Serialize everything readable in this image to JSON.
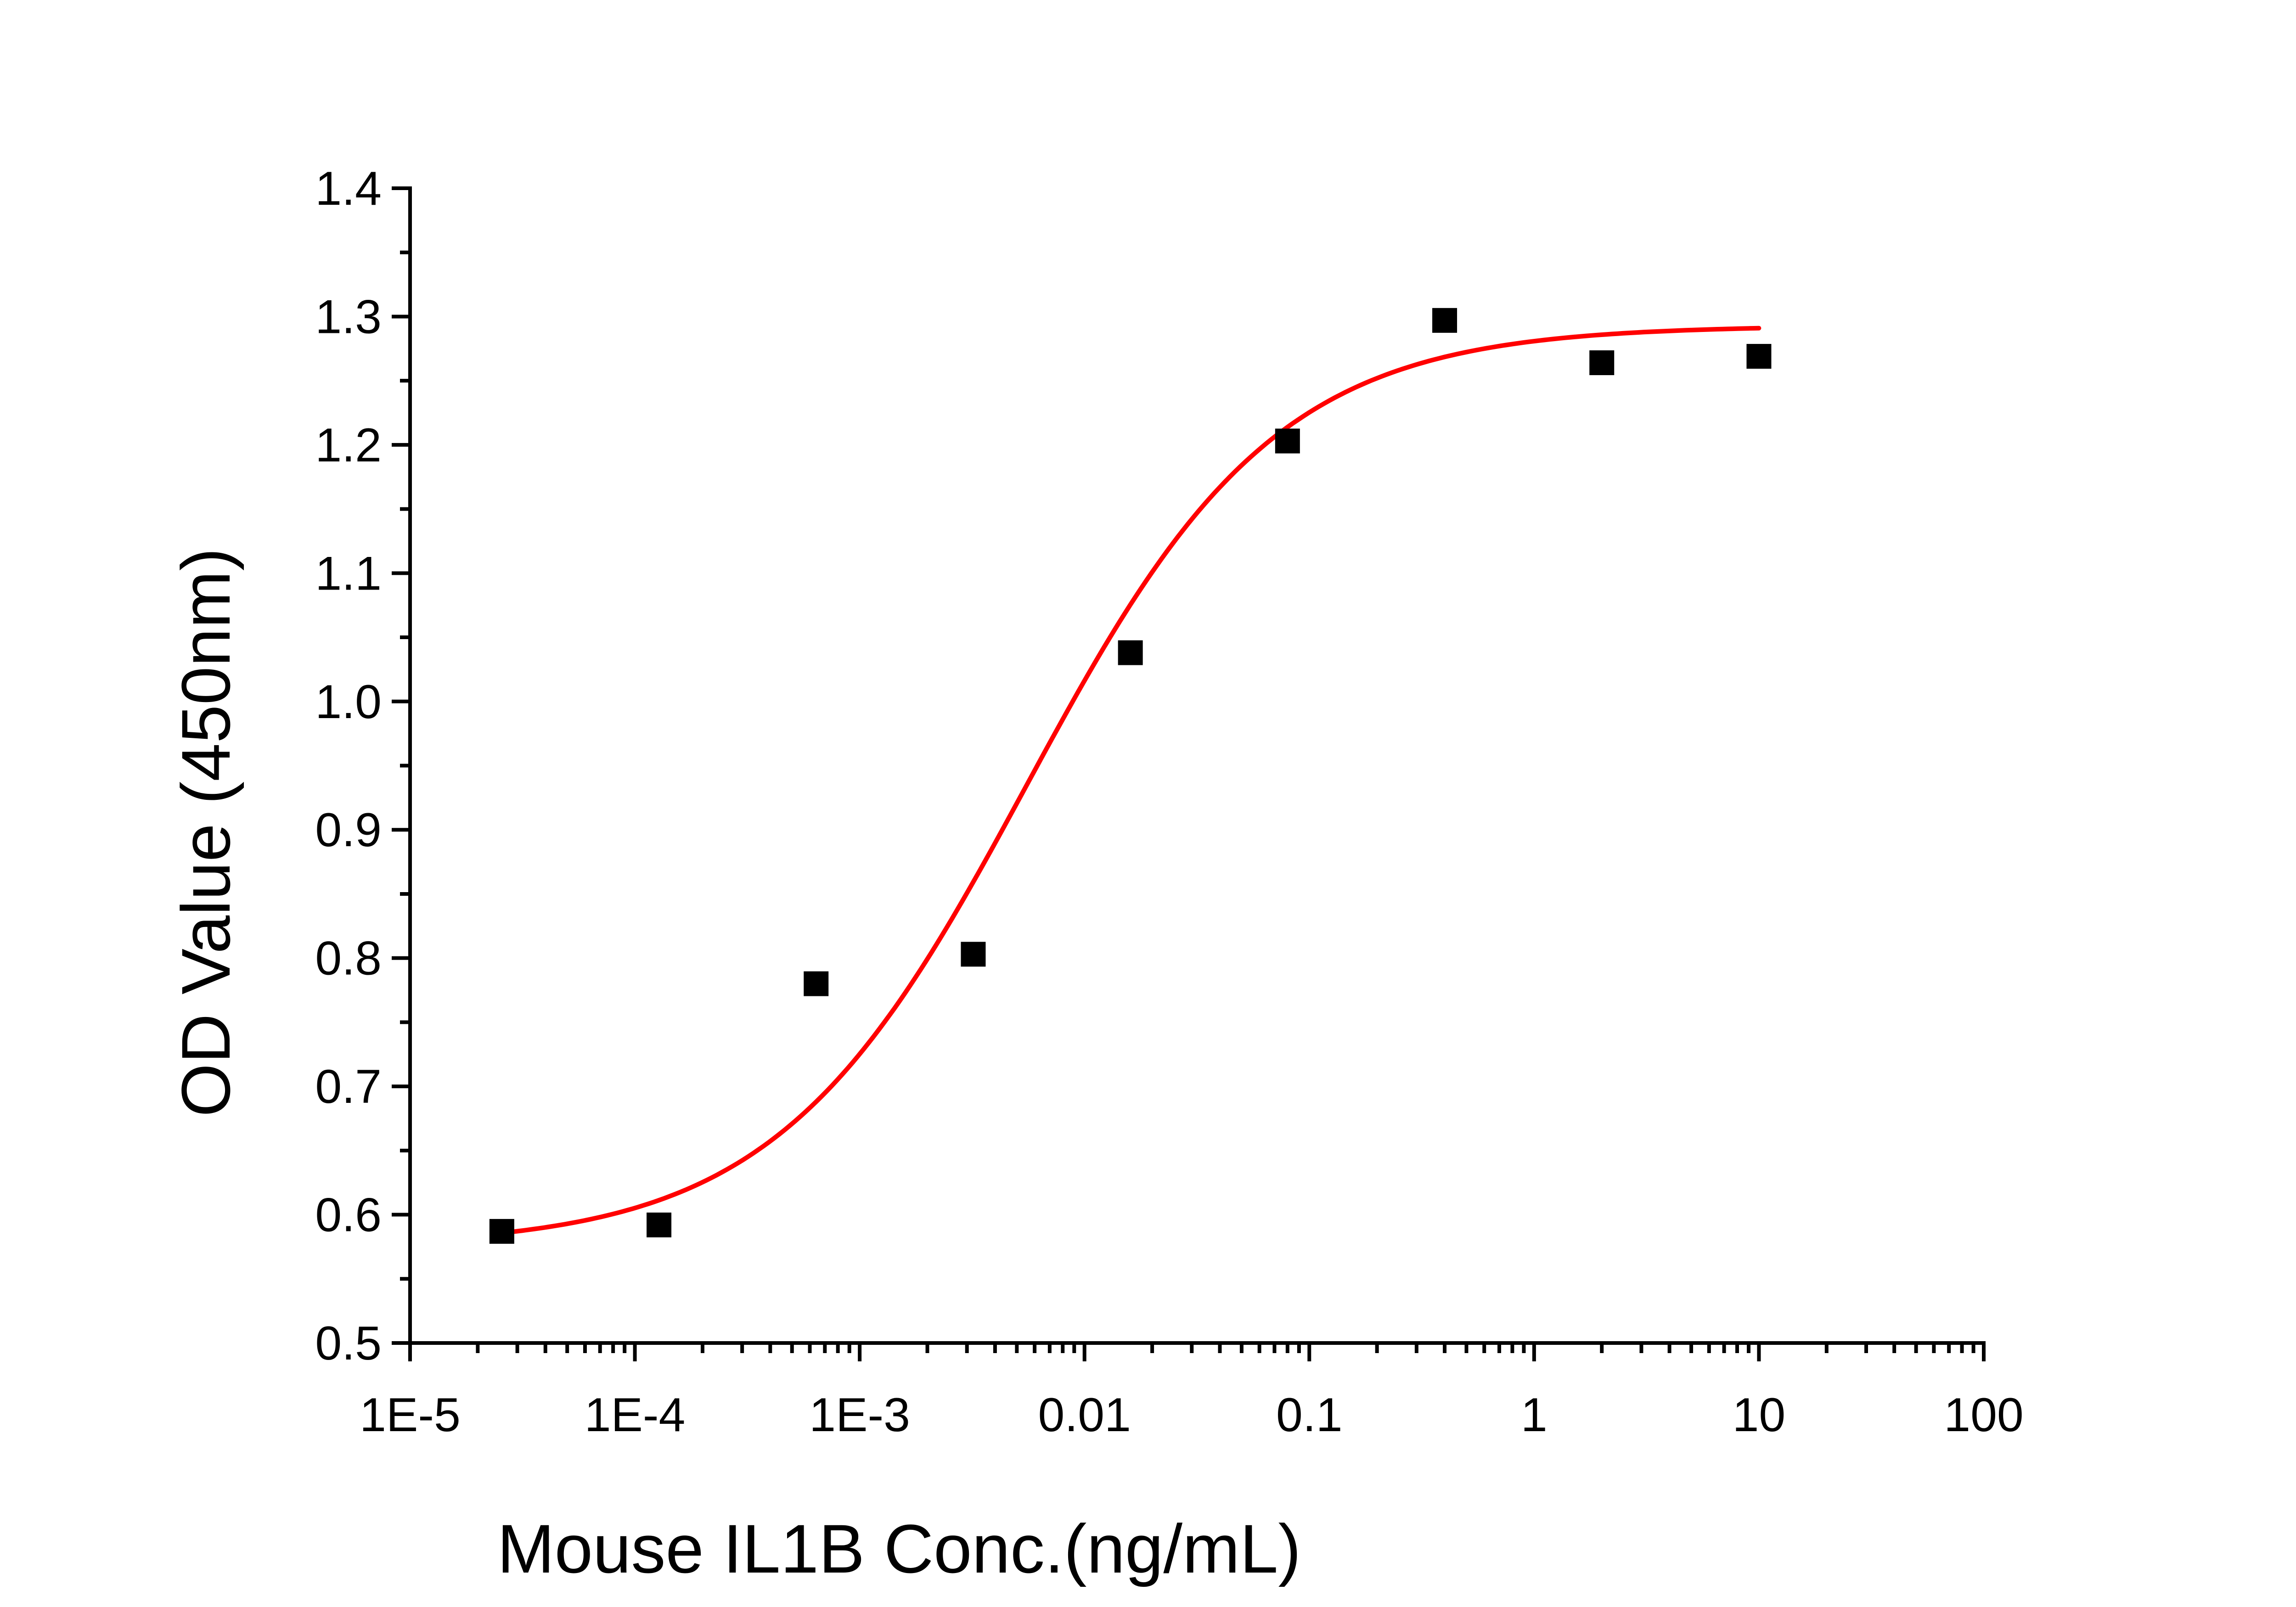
{
  "chart_data": {
    "type": "scatter",
    "title": "",
    "xlabel": "Mouse IL1B Conc.(ng/mL)",
    "ylabel": "OD Value (450nm)",
    "x_scale": "log10",
    "xlim": [
      1e-05,
      100
    ],
    "ylim": [
      0.5,
      1.4
    ],
    "grid": false,
    "legend": "none",
    "x_tick_values": [
      1e-05,
      0.0001,
      0.001,
      0.01,
      0.1,
      1,
      10,
      100
    ],
    "x_tick_labels": [
      "1E-5",
      "1E-4",
      "1E-3",
      "0.01",
      "0.1",
      "1",
      "10",
      "100"
    ],
    "y_tick_values": [
      0.5,
      0.6,
      0.7,
      0.8,
      0.9,
      1.0,
      1.1,
      1.2,
      1.3,
      1.4
    ],
    "y_tick_labels": [
      "0.5",
      "0.6",
      "0.7",
      "0.8",
      "0.9",
      "1.0",
      "1.1",
      "1.2",
      "1.3",
      "1.4"
    ],
    "series": [
      {
        "marker": "square",
        "color": "#000000",
        "x": [
          2.56e-05,
          0.000128,
          0.00064,
          0.0032,
          0.016,
          0.08,
          0.4,
          2,
          10
        ],
        "y": [
          0.587,
          0.592,
          0.78,
          0.803,
          1.038,
          1.203,
          1.297,
          1.264,
          1.269
        ]
      }
    ],
    "fit_curve": {
      "model": "4PL",
      "color": "#ff0000",
      "bottom": 0.575,
      "top": 1.293,
      "ec50": 0.0055,
      "hill": 0.78,
      "x_range": [
        2.56e-05,
        10
      ]
    }
  }
}
